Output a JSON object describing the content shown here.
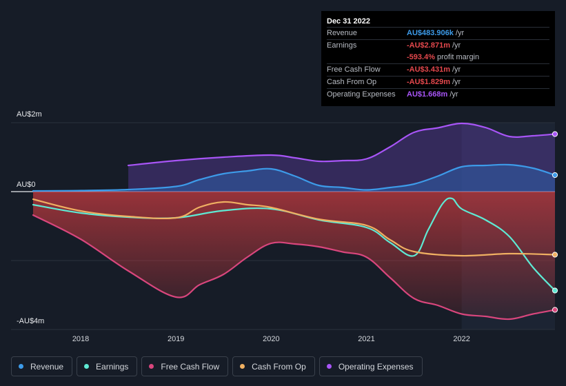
{
  "tooltip": {
    "date": "Dec 31 2022",
    "rows": [
      {
        "label": "Revenue",
        "value": "AU$483.906k",
        "unit": "/yr",
        "color": "#3d9be9"
      },
      {
        "label": "Earnings",
        "value": "-AU$2.871m",
        "unit": "/yr",
        "color": "#e5484d"
      },
      {
        "label": "",
        "value": "-593.4%",
        "unit": "profit margin",
        "color": "#e5484d"
      },
      {
        "label": "Free Cash Flow",
        "value": "-AU$3.431m",
        "unit": "/yr",
        "color": "#e5484d"
      },
      {
        "label": "Cash From Op",
        "value": "-AU$1.829m",
        "unit": "/yr",
        "color": "#e5484d"
      },
      {
        "label": "Operating Expenses",
        "value": "AU$1.668m",
        "unit": "/yr",
        "color": "#a855f7"
      }
    ]
  },
  "legend": [
    {
      "label": "Revenue",
      "color": "#3d9be9"
    },
    {
      "label": "Earnings",
      "color": "#5eead4"
    },
    {
      "label": "Free Cash Flow",
      "color": "#d9467d"
    },
    {
      "label": "Cash From Op",
      "color": "#f0b062"
    },
    {
      "label": "Operating Expenses",
      "color": "#a855f7"
    }
  ],
  "chart_data": {
    "type": "area",
    "title": "",
    "xlabel": "",
    "ylabel": "",
    "unit": "AU$ millions",
    "xlim": [
      2017.5,
      2022.98
    ],
    "ylim": [
      -4,
      2
    ],
    "y_tick_labels": [
      {
        "value": 2,
        "label": "AU$2m"
      },
      {
        "value": 0,
        "label": "AU$0"
      },
      {
        "value": -4,
        "label": "-AU$4m"
      }
    ],
    "x_ticks": [
      2018,
      2019,
      2020,
      2021,
      2022
    ],
    "x_tick_labels": [
      "2018",
      "2019",
      "2020",
      "2021",
      "2022"
    ],
    "highlight_from": 2022.0,
    "series": [
      {
        "name": "Operating Expenses",
        "color": "#a855f7",
        "points": [
          [
            2018.5,
            0.76
          ],
          [
            2019.0,
            0.9
          ],
          [
            2019.5,
            1.0
          ],
          [
            2020.0,
            1.06
          ],
          [
            2020.25,
            0.98
          ],
          [
            2020.5,
            0.88
          ],
          [
            2020.75,
            0.9
          ],
          [
            2021.0,
            0.95
          ],
          [
            2021.25,
            1.3
          ],
          [
            2021.5,
            1.72
          ],
          [
            2021.75,
            1.85
          ],
          [
            2022.0,
            1.98
          ],
          [
            2022.25,
            1.86
          ],
          [
            2022.5,
            1.6
          ],
          [
            2022.75,
            1.62
          ],
          [
            2022.98,
            1.67
          ]
        ]
      },
      {
        "name": "Revenue",
        "color": "#3d9be9",
        "points": [
          [
            2017.5,
            0.02
          ],
          [
            2018.0,
            0.03
          ],
          [
            2018.5,
            0.06
          ],
          [
            2019.0,
            0.15
          ],
          [
            2019.25,
            0.35
          ],
          [
            2019.5,
            0.52
          ],
          [
            2019.75,
            0.6
          ],
          [
            2020.0,
            0.66
          ],
          [
            2020.25,
            0.45
          ],
          [
            2020.5,
            0.18
          ],
          [
            2020.75,
            0.12
          ],
          [
            2021.0,
            0.05
          ],
          [
            2021.25,
            0.12
          ],
          [
            2021.5,
            0.22
          ],
          [
            2021.75,
            0.45
          ],
          [
            2022.0,
            0.72
          ],
          [
            2022.25,
            0.76
          ],
          [
            2022.5,
            0.78
          ],
          [
            2022.75,
            0.68
          ],
          [
            2022.98,
            0.48
          ]
        ]
      },
      {
        "name": "Earnings",
        "color": "#5eead4",
        "points": [
          [
            2017.5,
            -0.38
          ],
          [
            2018.0,
            -0.62
          ],
          [
            2018.5,
            -0.74
          ],
          [
            2019.0,
            -0.76
          ],
          [
            2019.5,
            -0.55
          ],
          [
            2020.0,
            -0.5
          ],
          [
            2020.5,
            -0.82
          ],
          [
            2021.0,
            -1.04
          ],
          [
            2021.25,
            -1.48
          ],
          [
            2021.5,
            -1.86
          ],
          [
            2021.65,
            -1.1
          ],
          [
            2021.8,
            -0.35
          ],
          [
            2021.9,
            -0.2
          ],
          [
            2022.0,
            -0.5
          ],
          [
            2022.25,
            -0.82
          ],
          [
            2022.5,
            -1.3
          ],
          [
            2022.75,
            -2.2
          ],
          [
            2022.98,
            -2.87
          ]
        ]
      },
      {
        "name": "Cash From Op",
        "color": "#f0b062",
        "points": [
          [
            2017.5,
            -0.22
          ],
          [
            2018.0,
            -0.56
          ],
          [
            2018.5,
            -0.72
          ],
          [
            2019.0,
            -0.76
          ],
          [
            2019.25,
            -0.45
          ],
          [
            2019.5,
            -0.3
          ],
          [
            2019.75,
            -0.38
          ],
          [
            2020.0,
            -0.46
          ],
          [
            2020.5,
            -0.8
          ],
          [
            2021.0,
            -0.98
          ],
          [
            2021.25,
            -1.4
          ],
          [
            2021.5,
            -1.74
          ],
          [
            2022.0,
            -1.86
          ],
          [
            2022.5,
            -1.8
          ],
          [
            2022.98,
            -1.83
          ]
        ]
      },
      {
        "name": "Free Cash Flow",
        "color": "#d9467d",
        "points": [
          [
            2017.5,
            -0.68
          ],
          [
            2018.0,
            -1.38
          ],
          [
            2018.5,
            -2.3
          ],
          [
            2019.0,
            -3.06
          ],
          [
            2019.25,
            -2.7
          ],
          [
            2019.5,
            -2.4
          ],
          [
            2019.75,
            -1.9
          ],
          [
            2020.0,
            -1.5
          ],
          [
            2020.25,
            -1.52
          ],
          [
            2020.5,
            -1.6
          ],
          [
            2020.75,
            -1.75
          ],
          [
            2021.0,
            -1.9
          ],
          [
            2021.25,
            -2.5
          ],
          [
            2021.5,
            -3.1
          ],
          [
            2021.75,
            -3.3
          ],
          [
            2022.0,
            -3.55
          ],
          [
            2022.25,
            -3.62
          ],
          [
            2022.5,
            -3.7
          ],
          [
            2022.75,
            -3.55
          ],
          [
            2022.98,
            -3.43
          ]
        ]
      }
    ]
  }
}
